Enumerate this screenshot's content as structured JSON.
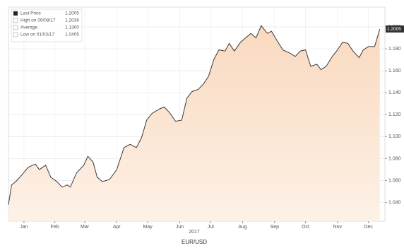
{
  "chart_data": {
    "type": "line",
    "title": "EUR/USD",
    "x_label": "2017",
    "legend_entries": [
      {
        "label": "Last Price",
        "value": "1.2005"
      },
      {
        "label": "High on 09/08/17",
        "value": "1.2036"
      },
      {
        "label": "Average",
        "value": "1.1300"
      },
      {
        "label": "Low on 01/03/17",
        "value": "1.0405"
      }
    ],
    "x": [
      0,
      3,
      7,
      12,
      19,
      26,
      30,
      36,
      41,
      47,
      52,
      57,
      60,
      66,
      73,
      77,
      82,
      86,
      91,
      98,
      105,
      112,
      118,
      124,
      129,
      134,
      139,
      146,
      151,
      156,
      162,
      168,
      173,
      178,
      184,
      189,
      194,
      199,
      204,
      210,
      214,
      219,
      225,
      230,
      235,
      240,
      245,
      251,
      255,
      260,
      266,
      273,
      278,
      283,
      288,
      293,
      299,
      303,
      308,
      314,
      319,
      324,
      329,
      334,
      340,
      344,
      349,
      355,
      360
    ],
    "series": [
      {
        "name": "EUR/USD",
        "color": "#3a3a3a",
        "values": [
          1.038,
          1.056,
          1.059,
          1.064,
          1.072,
          1.075,
          1.07,
          1.074,
          1.063,
          1.059,
          1.054,
          1.056,
          1.054,
          1.067,
          1.074,
          1.082,
          1.077,
          1.063,
          1.059,
          1.061,
          1.07,
          1.09,
          1.093,
          1.09,
          1.099,
          1.115,
          1.121,
          1.125,
          1.127,
          1.122,
          1.114,
          1.115,
          1.135,
          1.141,
          1.143,
          1.148,
          1.155,
          1.17,
          1.179,
          1.178,
          1.185,
          1.178,
          1.186,
          1.19,
          1.194,
          1.19,
          1.201,
          1.194,
          1.196,
          1.188,
          1.179,
          1.176,
          1.173,
          1.178,
          1.179,
          1.164,
          1.166,
          1.161,
          1.164,
          1.173,
          1.179,
          1.186,
          1.185,
          1.178,
          1.172,
          1.179,
          1.182,
          1.182,
          1.198
        ]
      }
    ],
    "xlim": [
      0,
      365
    ],
    "xticks": [
      {
        "value": 15,
        "label": "Jan"
      },
      {
        "value": 45,
        "label": "Feb"
      },
      {
        "value": 74,
        "label": "Mar"
      },
      {
        "value": 105,
        "label": "Apr"
      },
      {
        "value": 135,
        "label": "May"
      },
      {
        "value": 166,
        "label": "Jun"
      },
      {
        "value": 196,
        "label": "Jul"
      },
      {
        "value": 227,
        "label": "Aug"
      },
      {
        "value": 258,
        "label": "Sep"
      },
      {
        "value": 288,
        "label": "Oct"
      },
      {
        "value": 319,
        "label": "Nov"
      },
      {
        "value": 349,
        "label": "Dec"
      }
    ],
    "ylim": [
      1.023,
      1.218
    ],
    "yticks": [
      {
        "value": 1.04,
        "label": "1.040"
      },
      {
        "value": 1.06,
        "label": "1.060"
      },
      {
        "value": 1.08,
        "label": "1.080"
      },
      {
        "value": 1.1,
        "label": "1.100"
      },
      {
        "value": 1.12,
        "label": "1.120"
      },
      {
        "value": 1.14,
        "label": "1.140"
      },
      {
        "value": 1.16,
        "label": "1.160"
      },
      {
        "value": 1.18,
        "label": "1.180"
      },
      {
        "value": 1.2,
        "label": "1.200"
      }
    ],
    "grid": true
  }
}
